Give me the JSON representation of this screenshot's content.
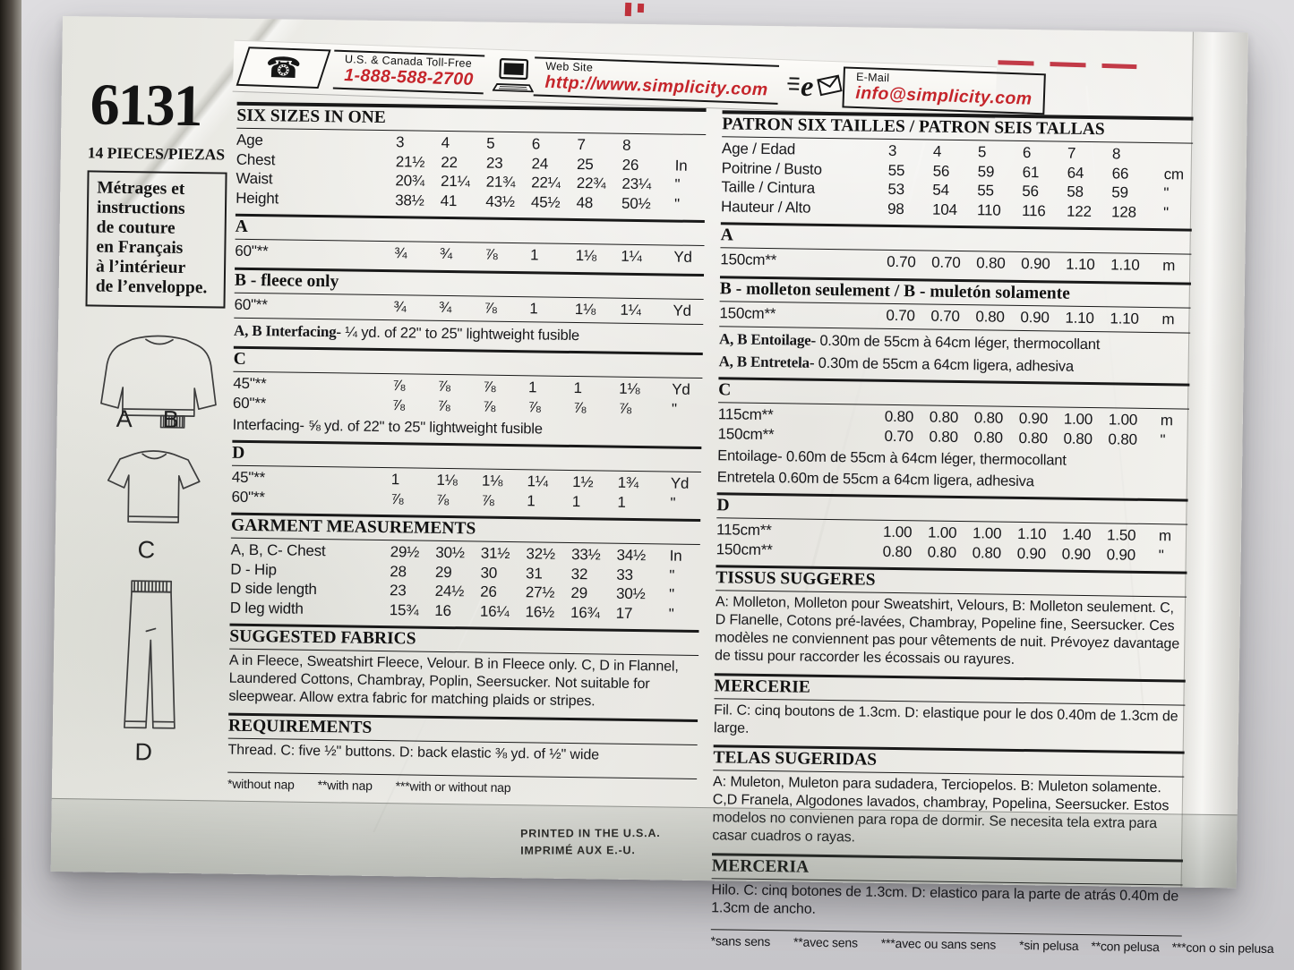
{
  "colors": {
    "brand_red": "#c5252b",
    "ink": "#17171a",
    "paper": "#efeeea"
  },
  "banner": {
    "phone_label": "U.S. & Canada Toll-Free",
    "phone_number": "1-888-588-2700",
    "web_label": "Web Site",
    "web_url": "http://www.simplicity.com",
    "email_label": "E-Mail",
    "email_address": "info@simplicity.com"
  },
  "masthead": {
    "pattern_number": "6131",
    "pieces_label": "14 PIECES/PIEZAS",
    "french_note": "Métrages et\ninstructions\nde couture\nen Français\nà l’intérieur\nde l’enveloppe.",
    "sketch_label_a": "A",
    "sketch_label_b": "B",
    "sketch_label_c": "C",
    "sketch_label_d": "D"
  },
  "english": {
    "size_title": "SIX SIZES IN ONE",
    "size_rows": [
      {
        "label": "Age",
        "values": [
          "3",
          "4",
          "5",
          "6",
          "7",
          "8"
        ],
        "unit": ""
      },
      {
        "label": "Chest",
        "values": [
          "21½",
          "22",
          "23",
          "24",
          "25",
          "26"
        ],
        "unit": "In"
      },
      {
        "label": "Waist",
        "values": [
          "20¾",
          "21¼",
          "21¾",
          "22¼",
          "22¾",
          "23¼"
        ],
        "unit": "\""
      },
      {
        "label": "Height",
        "values": [
          "38½",
          "41",
          "43½",
          "45½",
          "48",
          "50½"
        ],
        "unit": "\""
      }
    ],
    "sec_a": {
      "title": "A",
      "rows": [
        {
          "label": "60\"**",
          "values": [
            "¾",
            "¾",
            "⅞",
            "1",
            "1⅛",
            "1¼"
          ],
          "unit": "Yd"
        }
      ]
    },
    "sec_b": {
      "title": "B - fleece only",
      "rows": [
        {
          "label": "60\"**",
          "values": [
            "¾",
            "¾",
            "⅞",
            "1",
            "1⅛",
            "1¼"
          ],
          "unit": "Yd"
        }
      ]
    },
    "interfacing_ab_lead": "A, B Interfacing-",
    "interfacing_ab_rest": " ¼ yd. of 22\" to 25\" lightweight fusible",
    "sec_c": {
      "title": "C",
      "rows": [
        {
          "label": "45\"**",
          "values": [
            "⅞",
            "⅞",
            "⅞",
            "1",
            "1",
            "1⅛"
          ],
          "unit": "Yd"
        },
        {
          "label": "60\"**",
          "values": [
            "⅞",
            "⅞",
            "⅞",
            "⅞",
            "⅞",
            "⅞"
          ],
          "unit": "\""
        }
      ]
    },
    "interfacing_c": "Interfacing- ⅝ yd. of 22\" to 25\" lightweight fusible",
    "sec_d": {
      "title": "D",
      "rows": [
        {
          "label": "45\"**",
          "values": [
            "1",
            "1⅛",
            "1⅛",
            "1¼",
            "1½",
            "1¾"
          ],
          "unit": "Yd"
        },
        {
          "label": "60\"**",
          "values": [
            "⅞",
            "⅞",
            "⅞",
            "1",
            "1",
            "1"
          ],
          "unit": "\""
        }
      ]
    },
    "garment_title": "GARMENT MEASUREMENTS",
    "garment_rows": [
      {
        "label": "A, B, C- Chest",
        "values": [
          "29½",
          "30½",
          "31½",
          "32½",
          "33½",
          "34½"
        ],
        "unit": "In"
      },
      {
        "label": "D - Hip",
        "values": [
          "28",
          "29",
          "30",
          "31",
          "32",
          "33"
        ],
        "unit": "\""
      },
      {
        "label": "D side length",
        "values": [
          "23",
          "24½",
          "26",
          "27½",
          "29",
          "30½"
        ],
        "unit": "\""
      },
      {
        "label": "D leg width",
        "values": [
          "15¾",
          "16",
          "16¼",
          "16½",
          "16¾",
          "17"
        ],
        "unit": "\""
      }
    ],
    "fabrics_title": "SUGGESTED FABRICS",
    "fabrics_text": "A in Fleece, Sweatshirt Fleece, Velour. B in Fleece only. C, D in Flannel, Laundered Cottons, Chambray, Poplin, Seersucker. Not suitable for sleepwear. Allow extra fabric for matching plaids or stripes.",
    "requirements_title": "REQUIREMENTS",
    "requirements_text": "Thread. C: five ½\" buttons. D: back elastic ⅜ yd. of ½\" wide",
    "footnotes": [
      "*without nap",
      "**with nap",
      "***with or without nap"
    ]
  },
  "metric": {
    "size_title": "PATRON SIX TAILLES / PATRON SEIS TALLAS",
    "size_rows": [
      {
        "label": "Age / Edad",
        "values": [
          "3",
          "4",
          "5",
          "6",
          "7",
          "8"
        ],
        "unit": ""
      },
      {
        "label": "Poitrine / Busto",
        "values": [
          "55",
          "56",
          "59",
          "61",
          "64",
          "66"
        ],
        "unit": "cm"
      },
      {
        "label": "Taille / Cintura",
        "values": [
          "53",
          "54",
          "55",
          "56",
          "58",
          "59"
        ],
        "unit": "\""
      },
      {
        "label": "Hauteur / Alto",
        "values": [
          "98",
          "104",
          "110",
          "116",
          "122",
          "128"
        ],
        "unit": "\""
      }
    ],
    "sec_a": {
      "title": "A",
      "rows": [
        {
          "label": "150cm**",
          "values": [
            "0.70",
            "0.70",
            "0.80",
            "0.90",
            "1.10",
            "1.10"
          ],
          "unit": "m"
        }
      ]
    },
    "sec_b": {
      "title": "B - molleton seulement / B - muletón solamente",
      "rows": [
        {
          "label": "150cm**",
          "values": [
            "0.70",
            "0.70",
            "0.80",
            "0.90",
            "1.10",
            "1.10"
          ],
          "unit": "m"
        }
      ]
    },
    "entoilage_ab_lead": "A, B Entoilage-",
    "entoilage_ab_rest": " 0.30m de 55cm à 64cm léger, thermocollant",
    "entretela_ab_lead": "A, B Entretela-",
    "entretela_ab_rest": " 0.30m de 55cm a 64cm ligera, adhesiva",
    "sec_c": {
      "title": "C",
      "rows": [
        {
          "label": "115cm**",
          "values": [
            "0.80",
            "0.80",
            "0.80",
            "0.90",
            "1.00",
            "1.00"
          ],
          "unit": "m"
        },
        {
          "label": "150cm**",
          "values": [
            "0.70",
            "0.80",
            "0.80",
            "0.80",
            "0.80",
            "0.80"
          ],
          "unit": "\""
        }
      ]
    },
    "entoilage_c": "Entoilage- 0.60m de 55cm à 64cm léger, thermocollant",
    "entretela_c": "Entretela 0.60m de 55cm a 64cm ligera, adhesiva",
    "sec_d": {
      "title": "D",
      "rows": [
        {
          "label": "115cm**",
          "values": [
            "1.00",
            "1.00",
            "1.00",
            "1.10",
            "1.40",
            "1.50"
          ],
          "unit": "m"
        },
        {
          "label": "150cm**",
          "values": [
            "0.80",
            "0.80",
            "0.80",
            "0.90",
            "0.90",
            "0.90"
          ],
          "unit": "\""
        }
      ]
    },
    "tissus_title": "TISSUS SUGGERES",
    "tissus_text": "A: Molleton, Molleton pour Sweatshirt, Velours, B: Molleton seulement. C, D Flanelle, Cotons pré-lavées, Chambray, Popeline fine, Seersucker. Ces modèles ne conviennent pas pour vêtements de nuit. Prévoyez davantage de tissu pour raccorder les écossais ou rayures.",
    "mercerie_title": "MERCERIE",
    "mercerie_text": "Fil. C: cinq boutons de 1.3cm. D: elastique pour le dos 0.40m de 1.3cm de large.",
    "telas_title": "TELAS SUGERIDAS",
    "telas_text": "A: Muleton, Muleton para sudadera, Terciopelos. B: Muleton solamente. C,D Franela, Algodones lavados, chambray, Popelina, Seersucker. Estos modelos no convienen para ropa de dormir. Se necesita tela extra para casar cuadros o rayas.",
    "merceria_title": "MERCERIA",
    "merceria_text": "Hilo. C: cinq botones de 1.3cm. D: elastico para la parte de atrás 0.40m de 1.3cm de ancho.",
    "footnotes_fr": [
      "*sans sens",
      "**avec sens",
      "***avec ou sans sens"
    ],
    "footnotes_es": [
      "*sin pelusa",
      "**con pelusa",
      "***con o sin pelusa"
    ]
  },
  "footer": {
    "printed_line1": "PRINTED IN THE U.S.A.",
    "printed_line2": "IMPRIMÉ AUX E.-U."
  }
}
